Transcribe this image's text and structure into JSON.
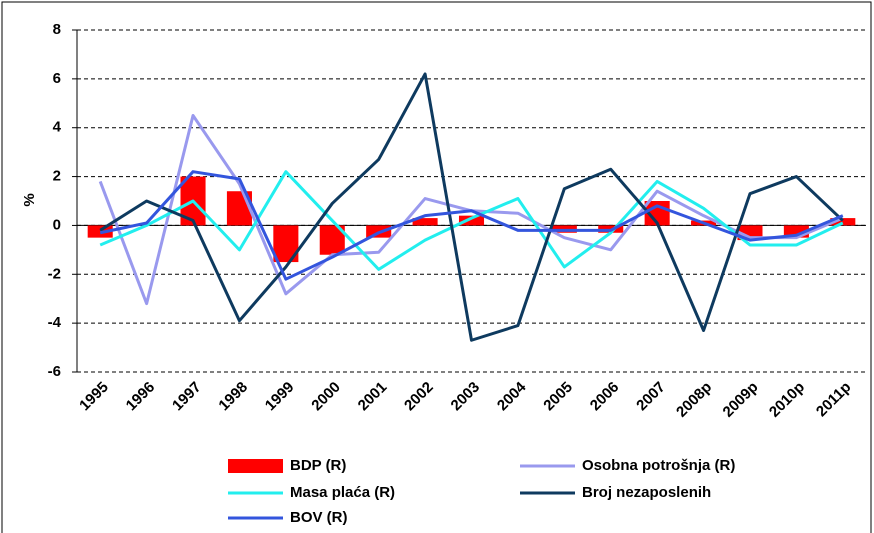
{
  "chart_data": {
    "type": "bar",
    "y_label": "%",
    "categories": [
      "1995",
      "1996",
      "1997",
      "1998",
      "1999",
      "2000",
      "2001",
      "2002",
      "2003",
      "2004",
      "2005",
      "2006",
      "2007",
      "2008p",
      "2009p",
      "2010p",
      "2011p"
    ],
    "series": [
      {
        "name": "BDP (R)",
        "type": "bar",
        "color": "#ff0000",
        "values": [
          -0.5,
          0,
          2.0,
          1.4,
          -1.5,
          -1.2,
          -0.5,
          0.3,
          0.4,
          0,
          -0.3,
          -0.3,
          1.0,
          0.2,
          -0.6,
          -0.5,
          0.3
        ]
      },
      {
        "name": "Osobna potrošnja (R)",
        "type": "line",
        "color": "#9999ee",
        "values": [
          1.8,
          -3.2,
          4.5,
          1.7,
          -2.8,
          -1.2,
          -1.1,
          1.1,
          0.6,
          0.5,
          -0.5,
          -1.0,
          1.4,
          0.4,
          -0.5,
          -0.5,
          0.3
        ]
      },
      {
        "name": "Masa plaća (R)",
        "type": "line",
        "color": "#22eeee",
        "values": [
          -0.8,
          0,
          1.0,
          -1.0,
          2.2,
          0.2,
          -1.8,
          -0.6,
          0.3,
          1.1,
          -1.7,
          -0.3,
          1.8,
          0.7,
          -0.8,
          -0.8,
          0.1
        ]
      },
      {
        "name": "Broj nezaposlenih",
        "type": "line",
        "color": "#0e3a5f",
        "values": [
          -0.2,
          1.0,
          0.2,
          -3.9,
          -1.7,
          0.9,
          2.7,
          6.2,
          -4.7,
          -4.1,
          1.5,
          2.3,
          0.1,
          -4.3,
          1.3,
          2.0,
          0.2
        ]
      },
      {
        "name": "BOV (R)",
        "type": "line",
        "color": "#3355dd",
        "values": [
          -0.3,
          0.1,
          2.2,
          1.9,
          -2.2,
          -1.3,
          -0.3,
          0.4,
          0.6,
          -0.2,
          -0.2,
          -0.2,
          0.8,
          0.1,
          -0.6,
          -0.4,
          0.4
        ]
      }
    ],
    "ylim": [
      -6,
      8
    ],
    "yticks": [
      -6,
      -4,
      -2,
      0,
      2,
      4,
      6,
      8
    ],
    "grid": true
  }
}
